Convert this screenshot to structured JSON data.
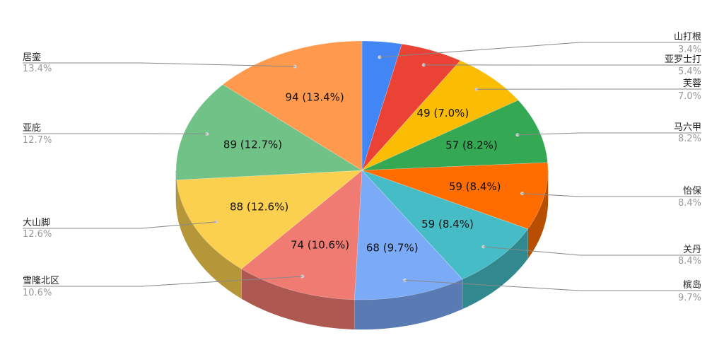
{
  "chart_data": {
    "type": "pie",
    "style": "3d",
    "title": "",
    "slices": [
      {
        "name": "山打根",
        "value": 24,
        "percent": "3.4%",
        "label": "",
        "color": "#4285f4",
        "side": "right"
      },
      {
        "name": "亚罗士打",
        "value": 38,
        "percent": "5.4%",
        "label": "",
        "color": "#ea4335",
        "side": "right"
      },
      {
        "name": "芙蓉",
        "value": 49,
        "percent": "7.0%",
        "label": "49 (7.0%)",
        "color": "#fbbc04",
        "side": "right"
      },
      {
        "name": "马六甲",
        "value": 57,
        "percent": "8.2%",
        "label": "57 (8.2%)",
        "color": "#34a853",
        "side": "right"
      },
      {
        "name": "怡保",
        "value": 59,
        "percent": "8.4%",
        "label": "59 (8.4%)",
        "color": "#ff6d01",
        "side": "right"
      },
      {
        "name": "关丹",
        "value": 59,
        "percent": "8.4%",
        "label": "59 (8.4%)",
        "color": "#46bdc6",
        "side": "right"
      },
      {
        "name": "槟岛",
        "value": 68,
        "percent": "9.7%",
        "label": "68 (9.7%)",
        "color": "#7baaf7",
        "side": "right"
      },
      {
        "name": "雪隆北区",
        "value": 74,
        "percent": "10.6%",
        "label": "74 (10.6%)",
        "color": "#f07b72",
        "side": "left"
      },
      {
        "name": "大山脚",
        "value": 88,
        "percent": "12.6%",
        "label": "88 (12.6%)",
        "color": "#fcd04f",
        "side": "left"
      },
      {
        "name": "亚庇",
        "value": 89,
        "percent": "12.7%",
        "label": "89 (12.7%)",
        "color": "#71c287",
        "side": "left"
      },
      {
        "name": "居銮",
        "value": 94,
        "percent": "13.4%",
        "label": "94 (13.4%)",
        "color": "#ff994d",
        "side": "left"
      }
    ]
  }
}
